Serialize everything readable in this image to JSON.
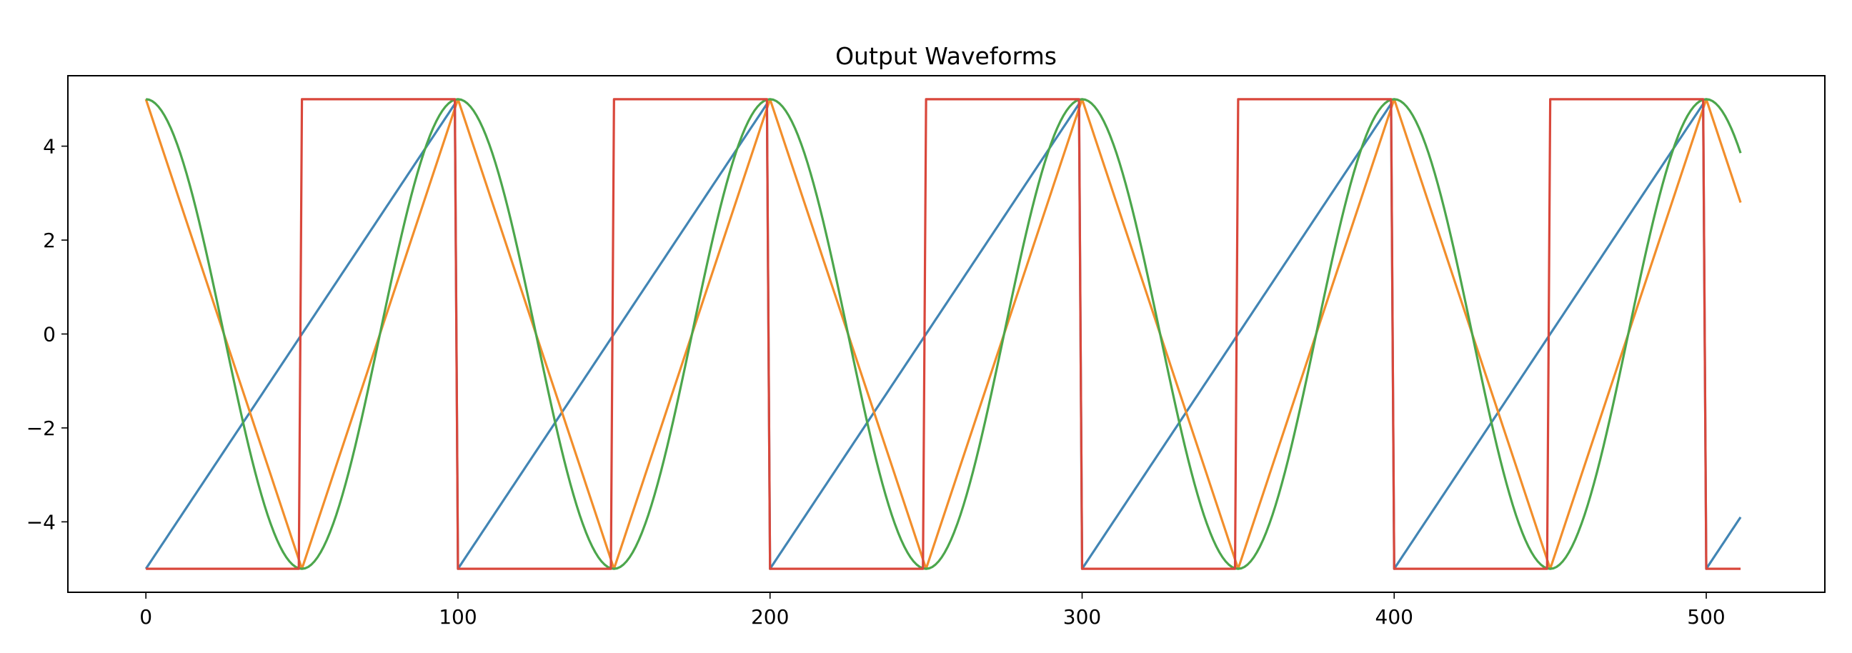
{
  "chart_data": {
    "type": "line",
    "title": "Output Waveforms",
    "xlabel": "",
    "ylabel": "",
    "xlim": [
      -25,
      538
    ],
    "ylim": [
      -5.5,
      5.5
    ],
    "xticks": [
      0,
      100,
      200,
      300,
      400,
      500
    ],
    "xtick_labels": [
      "0",
      "100",
      "200",
      "300",
      "400",
      "500"
    ],
    "yticks": [
      -4,
      -2,
      0,
      2,
      4
    ],
    "ytick_labels": [
      "−4",
      "−2",
      "0",
      "2",
      "4"
    ],
    "grid": false,
    "legend": "none",
    "x_end": 511,
    "period": 100,
    "amplitude": 5,
    "series": [
      {
        "waveform": "sawtooth",
        "color": "#4285b4"
      },
      {
        "waveform": "triangle",
        "color": "#f28e2b"
      },
      {
        "waveform": "cosine",
        "color": "#4ca64c"
      },
      {
        "waveform": "square",
        "color": "#d9473b"
      }
    ]
  }
}
